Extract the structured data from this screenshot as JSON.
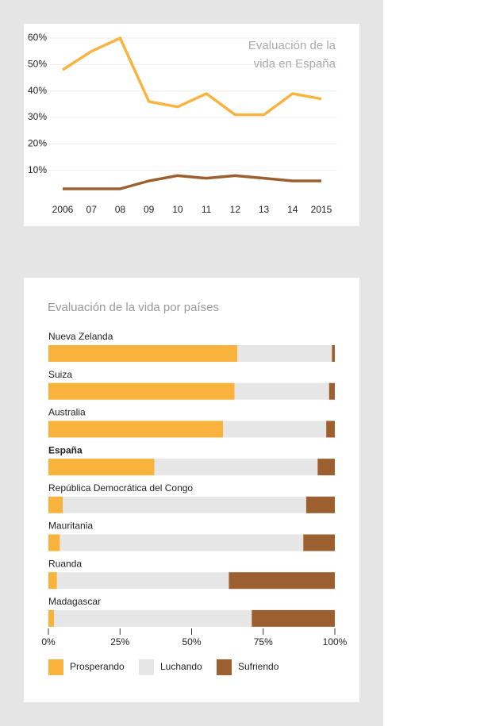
{
  "chart_data": [
    {
      "type": "line",
      "title": "Evaluación de la vida en España",
      "categories": [
        "2006",
        "07",
        "08",
        "09",
        "10",
        "11",
        "12",
        "13",
        "14",
        "2015"
      ],
      "series": [
        {
          "color": "#f7b441",
          "values": [
            48,
            55,
            60,
            36,
            34,
            39,
            31,
            31,
            39,
            37
          ]
        },
        {
          "color": "#9c5f2f",
          "values": [
            3,
            3,
            3,
            6,
            8,
            7,
            8,
            7,
            6,
            6
          ]
        }
      ],
      "ylim": [
        0,
        60
      ],
      "yticks": [
        {
          "value": 10,
          "label": "10%"
        },
        {
          "value": 20,
          "label": "20%"
        },
        {
          "value": 30,
          "label": "30%"
        },
        {
          "value": 40,
          "label": "40%"
        },
        {
          "value": 50,
          "label": "50%"
        },
        {
          "value": 60,
          "label": "60%"
        }
      ],
      "grid": true
    },
    {
      "type": "stacked-bar",
      "title": "Evaluación de la vida por países",
      "categories": [
        "Nueva Zelanda",
        "Suiza",
        "Australia",
        "España",
        "República Democrática del Congo",
        "Mauritania",
        "Ruanda",
        "Madagascar"
      ],
      "series": [
        {
          "name": "Prosperando",
          "color": "#f9b23b",
          "values": [
            66,
            65,
            61,
            37,
            5,
            4,
            3,
            2
          ]
        },
        {
          "name": "Luchando",
          "color": "#e6e6e6",
          "values": [
            33,
            33,
            36,
            57,
            85,
            85,
            60,
            69
          ]
        },
        {
          "name": "Sufriendo",
          "color": "#9c5f2f",
          "values": [
            1,
            2,
            3,
            6,
            10,
            11,
            37,
            29
          ]
        }
      ],
      "xlim": [
        0,
        100
      ],
      "xticks": [
        {
          "value": 0,
          "label": "0%"
        },
        {
          "value": 25,
          "label": "25%"
        },
        {
          "value": 50,
          "label": "50%"
        },
        {
          "value": 75,
          "label": "75%"
        },
        {
          "value": 100,
          "label": "100%"
        }
      ],
      "legend": "bottom"
    }
  ]
}
